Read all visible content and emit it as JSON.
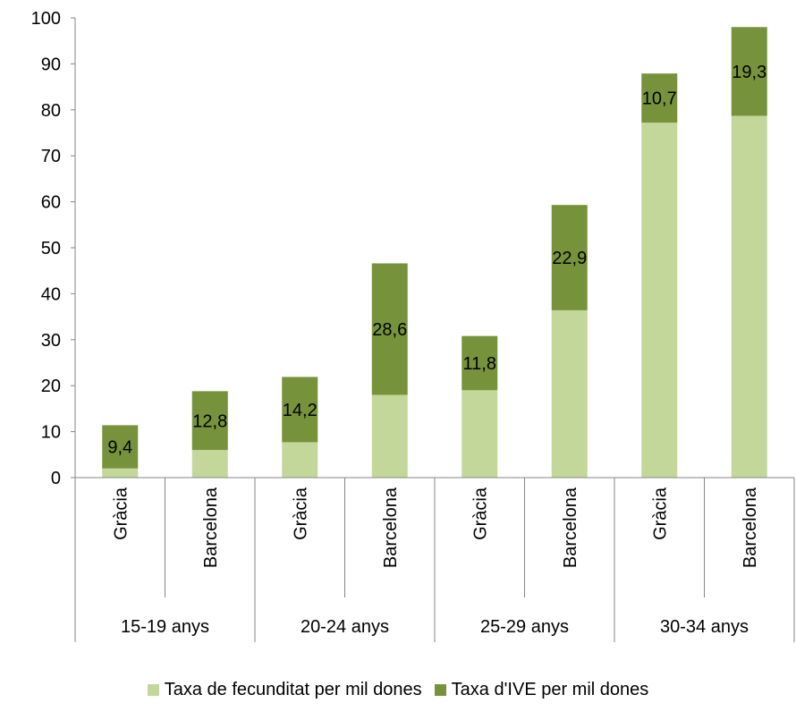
{
  "chart_data": {
    "type": "bar",
    "stacked": true,
    "groups": [
      "15-19 anys",
      "20-24 anys",
      "25-29 anys",
      "30-34 anys"
    ],
    "categories": [
      "Gràcia",
      "Barcelona",
      "Gràcia",
      "Barcelona",
      "Gràcia",
      "Barcelona",
      "Gràcia",
      "Barcelona"
    ],
    "series": [
      {
        "name": "Taxa de fecunditat per mil dones",
        "color": "#c4d79b",
        "values": [
          2.0,
          6.0,
          7.7,
          18.0,
          19.0,
          36.4,
          77.2,
          78.7
        ]
      },
      {
        "name": "Taxa d'IVE per mil dones",
        "color": "#76933c",
        "values": [
          9.4,
          12.8,
          14.2,
          28.6,
          11.8,
          22.9,
          10.7,
          19.3
        ],
        "labels": [
          "9,4",
          "12,8",
          "14,2",
          "28,6",
          "11,8",
          "22,9",
          "10,7",
          "19,3"
        ]
      }
    ],
    "ylim": [
      0,
      100
    ],
    "yticks": [
      "0",
      "10",
      "20",
      "30",
      "40",
      "50",
      "60",
      "70",
      "80",
      "90",
      "100"
    ],
    "grid": false,
    "legend_position": "bottom",
    "title": "",
    "xlabel": "",
    "ylabel": ""
  }
}
